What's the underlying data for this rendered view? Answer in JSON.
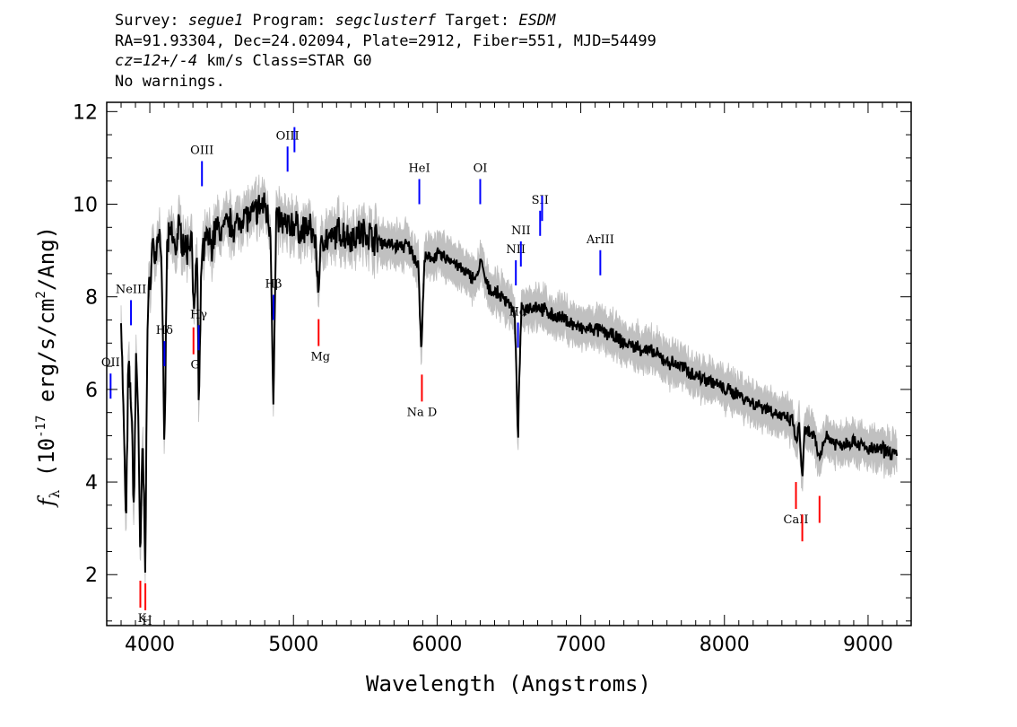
{
  "header": {
    "line1": {
      "survey_label": "Survey: ",
      "survey": "segue1",
      "program_label": " Program: ",
      "program": "segclusterf",
      "target_label": " Target: ",
      "target": "ESDM"
    },
    "line2": "RA=91.93304, Dec=24.02094, Plate=2912, Fiber=551, MJD=54499",
    "line3": {
      "cz": "cz=12+/-4",
      "rest": " km/s Class=STAR G0"
    },
    "line4": "No warnings."
  },
  "chart_data": {
    "type": "line",
    "title": "",
    "xlabel": "Wavelength (Angstroms)",
    "ylabel": "fλ (10^-17 erg/s/cm^2/Ang)",
    "xlim": [
      3700,
      9300
    ],
    "ylim": [
      0.9,
      12.2
    ],
    "x_ticks": [
      4000,
      5000,
      6000,
      7000,
      8000,
      9000
    ],
    "y_ticks": [
      2,
      4,
      6,
      8,
      10,
      12
    ],
    "grid": false,
    "series": [
      {
        "style": "black",
        "points": [
          [
            3800,
            7.6
          ],
          [
            3820,
            5.0
          ],
          [
            3835,
            3.0
          ],
          [
            3850,
            6.5
          ],
          [
            3870,
            5.8
          ],
          [
            3889,
            3.4
          ],
          [
            3905,
            6.8
          ],
          [
            3920,
            5.5
          ],
          [
            3933,
            2.1
          ],
          [
            3950,
            5.0
          ],
          [
            3968,
            2.3
          ],
          [
            3985,
            7.6
          ],
          [
            4000,
            8.3
          ],
          [
            4020,
            9.2
          ],
          [
            4040,
            8.8
          ],
          [
            4060,
            9.5
          ],
          [
            4080,
            9.0
          ],
          [
            4102,
            4.6
          ],
          [
            4120,
            9.1
          ],
          [
            4150,
            9.4
          ],
          [
            4180,
            9.0
          ],
          [
            4200,
            9.5
          ],
          [
            4230,
            9.2
          ],
          [
            4260,
            9.0
          ],
          [
            4290,
            9.4
          ],
          [
            4310,
            7.6
          ],
          [
            4330,
            9.1
          ],
          [
            4341,
            5.3
          ],
          [
            4360,
            8.8
          ],
          [
            4400,
            9.3
          ],
          [
            4430,
            9.1
          ],
          [
            4460,
            9.5
          ],
          [
            4500,
            9.4
          ],
          [
            4550,
            9.6
          ],
          [
            4600,
            9.5
          ],
          [
            4650,
            9.8
          ],
          [
            4700,
            9.7
          ],
          [
            4750,
            9.9
          ],
          [
            4800,
            10.0
          ],
          [
            4840,
            9.5
          ],
          [
            4861,
            5.6
          ],
          [
            4880,
            9.7
          ],
          [
            4920,
            9.6
          ],
          [
            4960,
            9.5
          ],
          [
            5000,
            9.6
          ],
          [
            5050,
            9.4
          ],
          [
            5100,
            9.5
          ],
          [
            5150,
            9.3
          ],
          [
            5172,
            8.2
          ],
          [
            5200,
            9.3
          ],
          [
            5270,
            9.2
          ],
          [
            5300,
            9.4
          ],
          [
            5400,
            9.3
          ],
          [
            5500,
            9.4
          ],
          [
            5600,
            9.2
          ],
          [
            5700,
            9.1
          ],
          [
            5800,
            9.1
          ],
          [
            5870,
            8.7
          ],
          [
            5890,
            6.7
          ],
          [
            5910,
            8.8
          ],
          [
            6000,
            8.9
          ],
          [
            6100,
            8.8
          ],
          [
            6200,
            8.5
          ],
          [
            6280,
            8.4
          ],
          [
            6300,
            8.8
          ],
          [
            6350,
            8.2
          ],
          [
            6400,
            8.1
          ],
          [
            6500,
            7.9
          ],
          [
            6540,
            7.6
          ],
          [
            6563,
            5.0
          ],
          [
            6585,
            7.7
          ],
          [
            6650,
            7.8
          ],
          [
            6700,
            7.8
          ],
          [
            6800,
            7.6
          ],
          [
            6900,
            7.5
          ],
          [
            7000,
            7.3
          ],
          [
            7100,
            7.3
          ],
          [
            7200,
            7.2
          ],
          [
            7300,
            7.0
          ],
          [
            7400,
            6.9
          ],
          [
            7500,
            6.8
          ],
          [
            7600,
            6.6
          ],
          [
            7700,
            6.5
          ],
          [
            7800,
            6.3
          ],
          [
            7900,
            6.2
          ],
          [
            8000,
            6.0
          ],
          [
            8100,
            5.9
          ],
          [
            8200,
            5.7
          ],
          [
            8300,
            5.6
          ],
          [
            8400,
            5.4
          ],
          [
            8480,
            5.3
          ],
          [
            8498,
            4.8
          ],
          [
            8520,
            5.2
          ],
          [
            8542,
            4.1
          ],
          [
            8560,
            5.1
          ],
          [
            8620,
            5.0
          ],
          [
            8662,
            4.5
          ],
          [
            8700,
            5.0
          ],
          [
            8800,
            4.8
          ],
          [
            8900,
            4.9
          ],
          [
            9000,
            4.7
          ],
          [
            9100,
            4.7
          ],
          [
            9200,
            4.6
          ]
        ]
      }
    ],
    "emission_lines": [
      {
        "label": "OII",
        "wavelength": 3727
      },
      {
        "label": "NeIII",
        "wavelength": 3869
      },
      {
        "label": "Hδ",
        "wavelength": 4102
      },
      {
        "label": "Hγ",
        "wavelength": 4340
      },
      {
        "label": "OIII",
        "wavelength": 4363
      },
      {
        "label": "Hβ",
        "wavelength": 4861
      },
      {
        "label": "OIII",
        "wavelength": 4959
      },
      {
        "label": "",
        "wavelength": 5007
      },
      {
        "label": "HeI",
        "wavelength": 5876
      },
      {
        "label": "OI",
        "wavelength": 6300
      },
      {
        "label": "NII",
        "wavelength": 6548
      },
      {
        "label": "Hα",
        "wavelength": 6563
      },
      {
        "label": "NII",
        "wavelength": 6583
      },
      {
        "label": "SII",
        "wavelength": 6717
      },
      {
        "label": "",
        "wavelength": 6731
      },
      {
        "label": "ArIII",
        "wavelength": 7136
      }
    ],
    "absorption_lines": [
      {
        "label": "K",
        "wavelength": 3934
      },
      {
        "label": "H",
        "wavelength": 3969
      },
      {
        "label": "G",
        "wavelength": 4304
      },
      {
        "label": "Mg",
        "wavelength": 5175
      },
      {
        "label": "Na D",
        "wavelength": 5894
      },
      {
        "label": "CaII",
        "wavelength": 8498
      },
      {
        "label": "",
        "wavelength": 8542
      },
      {
        "label": "",
        "wavelength": 8662
      }
    ],
    "colors": {
      "spectrum": "#000000",
      "error_band": "#c0c0c0",
      "emission_marker": "#0000ff",
      "absorption_marker": "#ff0000"
    }
  }
}
